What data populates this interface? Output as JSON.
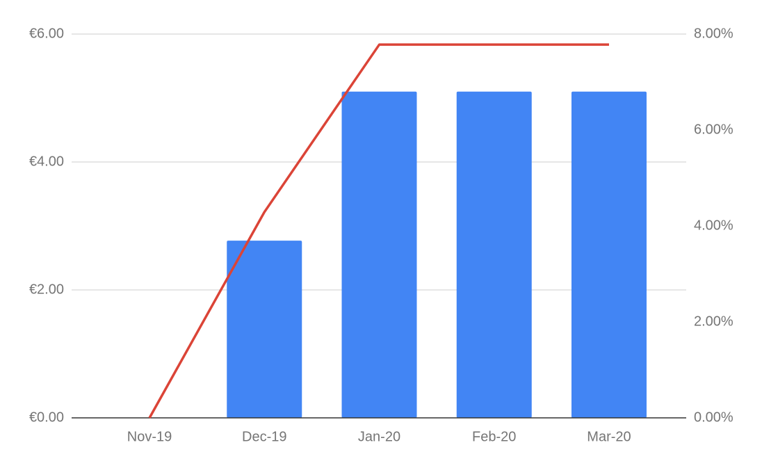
{
  "chart_data": {
    "type": "bar-line",
    "categories": [
      "Nov-19",
      "Dec-19",
      "Jan-20",
      "Feb-20",
      "Mar-20"
    ],
    "series": [
      {
        "type": "bar",
        "color": "#4285f4",
        "values": [
          0,
          2.77,
          5.1,
          5.1,
          5.1
        ]
      },
      {
        "type": "line",
        "axis": "y2",
        "color": "#db4437",
        "values": [
          0,
          4.29,
          7.78,
          7.78,
          7.78
        ]
      }
    ],
    "ylim": [
      0,
      6
    ],
    "yticks": [
      {
        "value": 0,
        "label": "€0.00"
      },
      {
        "value": 2,
        "label": "€2.00"
      },
      {
        "value": 4,
        "label": "€4.00"
      },
      {
        "value": 6,
        "label": "€6.00"
      }
    ],
    "y2lim": [
      0,
      8
    ],
    "y2ticks": [
      {
        "value": 0,
        "label": "0.00%"
      },
      {
        "value": 2,
        "label": "2.00%"
      },
      {
        "value": 4,
        "label": "4.00%"
      },
      {
        "value": 6,
        "label": "6.00%"
      },
      {
        "value": 8,
        "label": "8.00%"
      }
    ],
    "grid": true
  }
}
